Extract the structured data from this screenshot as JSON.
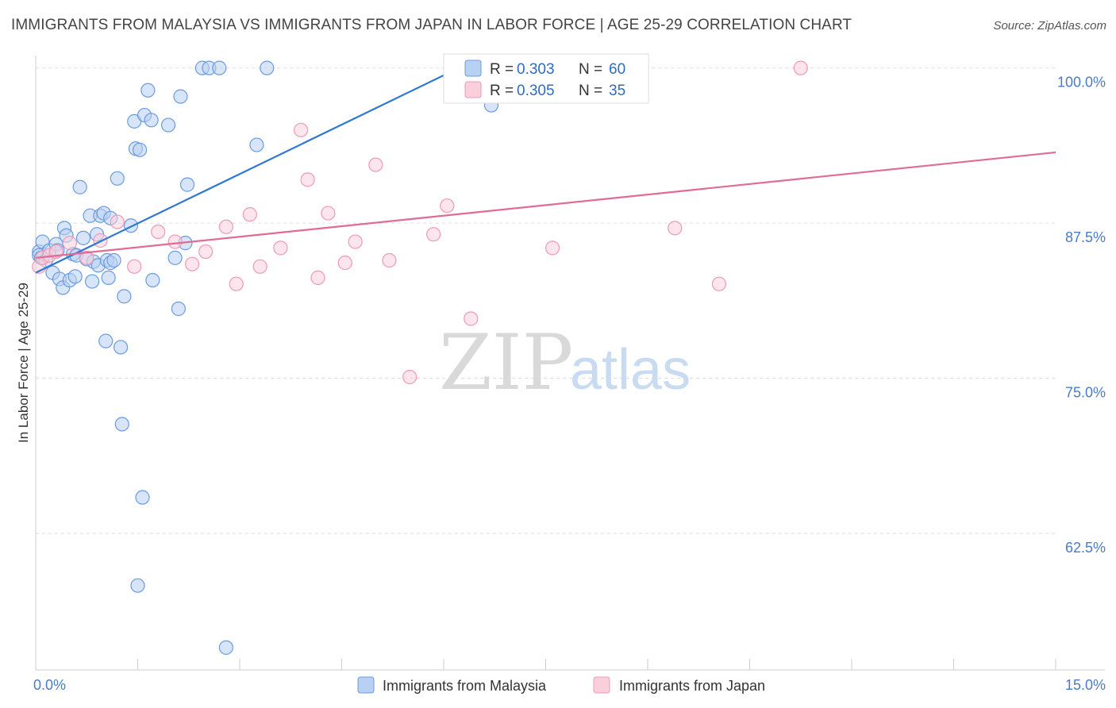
{
  "header": {
    "title": "IMMIGRANTS FROM MALAYSIA VS IMMIGRANTS FROM JAPAN IN LABOR FORCE | AGE 25-29 CORRELATION CHART",
    "source": "Source: ZipAtlas.com"
  },
  "watermark": {
    "zip": "ZIP",
    "atlas": "atlas"
  },
  "legend": {
    "malaysia": {
      "r_label": "R = ",
      "r_value": "0.303",
      "n_label": "N = ",
      "n_value": "60"
    },
    "japan": {
      "r_label": "R = ",
      "r_value": "0.305",
      "n_label": "N = ",
      "n_value": "35"
    }
  },
  "chart_data": {
    "type": "scatter",
    "title": "IMMIGRANTS FROM MALAYSIA VS IMMIGRANTS FROM JAPAN IN LABOR FORCE | AGE 25-29 CORRELATION CHART",
    "ylabel": "In Labor Force | Age 25-29",
    "xlabel": "",
    "xlim": [
      0,
      15
    ],
    "ylim": [
      51.5,
      101
    ],
    "x_tick_labels": [
      {
        "value": 0,
        "label": "0.0%"
      },
      {
        "value": 15,
        "label": "15.0%"
      }
    ],
    "y_tick_labels": [
      {
        "value": 100,
        "label": "100.0%"
      },
      {
        "value": 87.5,
        "label": "87.5%"
      },
      {
        "value": 75,
        "label": "75.0%"
      },
      {
        "value": 62.5,
        "label": "62.5%"
      }
    ],
    "grid": true,
    "legend_position": "top-center",
    "series": [
      {
        "name": "Immigrants from Malaysia",
        "color": "#6a9be0",
        "fill": "#b8d0f2",
        "line_color": "#2e78d2",
        "trend": {
          "x": [
            0.0,
            6.6
          ],
          "y": [
            83.5,
            101.0
          ]
        },
        "points": [
          [
            0.05,
            85.2
          ],
          [
            0.05,
            84.9
          ],
          [
            0.08,
            84.7
          ],
          [
            0.1,
            86.0
          ],
          [
            0.15,
            84.5
          ],
          [
            0.2,
            85.3
          ],
          [
            0.25,
            83.5
          ],
          [
            0.3,
            85.8
          ],
          [
            0.32,
            85.3
          ],
          [
            0.35,
            83.0
          ],
          [
            0.4,
            82.3
          ],
          [
            0.42,
            87.1
          ],
          [
            0.45,
            86.5
          ],
          [
            0.5,
            82.9
          ],
          [
            0.55,
            85.0
          ],
          [
            0.58,
            83.2
          ],
          [
            0.6,
            84.9
          ],
          [
            0.65,
            90.4
          ],
          [
            0.7,
            86.3
          ],
          [
            0.75,
            84.6
          ],
          [
            0.8,
            88.1
          ],
          [
            0.85,
            84.4
          ],
          [
            0.83,
            82.8
          ],
          [
            0.9,
            86.6
          ],
          [
            0.92,
            84.1
          ],
          [
            0.95,
            88.1
          ],
          [
            1.0,
            88.3
          ],
          [
            1.05,
            84.5
          ],
          [
            1.03,
            78.0
          ],
          [
            1.1,
            87.9
          ],
          [
            1.07,
            83.1
          ],
          [
            1.1,
            84.3
          ],
          [
            1.15,
            84.5
          ],
          [
            1.2,
            91.1
          ],
          [
            1.25,
            77.5
          ],
          [
            1.27,
            71.3
          ],
          [
            1.3,
            81.6
          ],
          [
            1.4,
            87.3
          ],
          [
            1.45,
            95.7
          ],
          [
            1.47,
            93.5
          ],
          [
            1.5,
            58.3
          ],
          [
            1.53,
            93.4
          ],
          [
            1.57,
            65.4
          ],
          [
            1.6,
            96.2
          ],
          [
            1.65,
            98.2
          ],
          [
            1.7,
            95.8
          ],
          [
            1.72,
            82.9
          ],
          [
            1.95,
            95.4
          ],
          [
            2.05,
            84.7
          ],
          [
            2.1,
            80.6
          ],
          [
            2.13,
            97.7
          ],
          [
            2.2,
            85.9
          ],
          [
            2.23,
            90.6
          ],
          [
            2.45,
            100.0
          ],
          [
            2.55,
            100.0
          ],
          [
            2.7,
            100.0
          ],
          [
            2.8,
            53.3
          ],
          [
            3.25,
            93.8
          ],
          [
            3.4,
            100.0
          ],
          [
            6.7,
            97.0
          ]
        ]
      },
      {
        "name": "Immigrants from Japan",
        "color": "#ee9ab4",
        "fill": "#f9cfdc",
        "line_color": "#e06b95",
        "trend": {
          "x": [
            0.0,
            15.0
          ],
          "y": [
            84.7,
            93.2
          ]
        },
        "points": [
          [
            0.05,
            84.0
          ],
          [
            0.1,
            84.7
          ],
          [
            0.2,
            84.9
          ],
          [
            0.3,
            85.2
          ],
          [
            0.5,
            85.9
          ],
          [
            0.75,
            84.7
          ],
          [
            0.95,
            86.1
          ],
          [
            1.2,
            87.6
          ],
          [
            1.45,
            84.0
          ],
          [
            1.8,
            86.8
          ],
          [
            2.05,
            86.0
          ],
          [
            2.3,
            84.2
          ],
          [
            2.5,
            85.2
          ],
          [
            2.8,
            87.2
          ],
          [
            2.95,
            82.6
          ],
          [
            3.15,
            88.2
          ],
          [
            3.3,
            84.0
          ],
          [
            3.6,
            85.5
          ],
          [
            3.9,
            95.0
          ],
          [
            4.0,
            91.0
          ],
          [
            4.15,
            83.1
          ],
          [
            4.3,
            88.3
          ],
          [
            4.55,
            84.3
          ],
          [
            4.7,
            86.0
          ],
          [
            5.0,
            92.2
          ],
          [
            5.2,
            84.5
          ],
          [
            5.5,
            75.1
          ],
          [
            5.85,
            86.6
          ],
          [
            6.05,
            88.9
          ],
          [
            6.4,
            79.8
          ],
          [
            7.6,
            85.5
          ],
          [
            9.4,
            87.1
          ],
          [
            10.05,
            82.6
          ],
          [
            11.25,
            100.0
          ],
          [
            6.9,
            100.0
          ]
        ]
      }
    ]
  }
}
